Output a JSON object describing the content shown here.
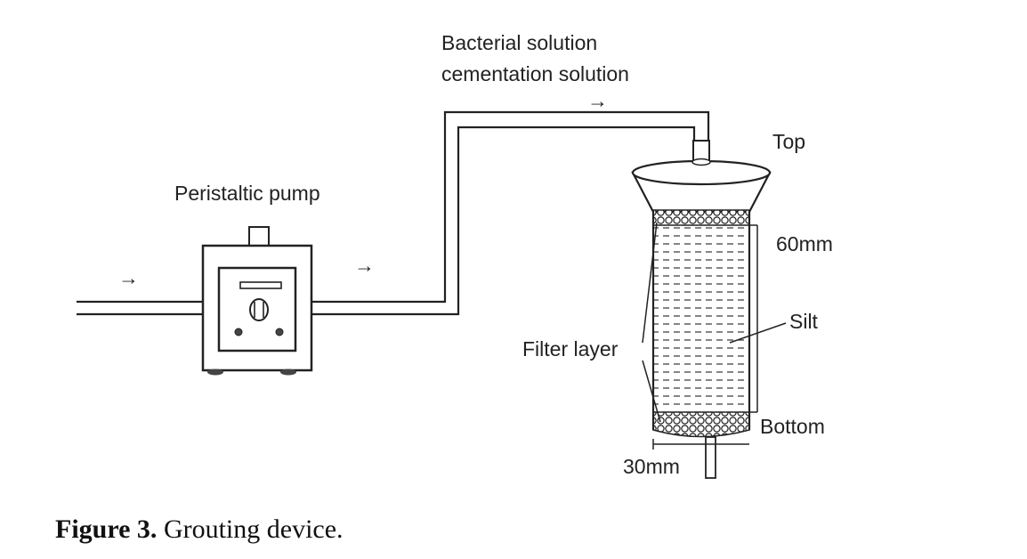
{
  "labels": {
    "solution_line1": "Bacterial solution",
    "solution_line2": "cementation solution",
    "pump": "Peristaltic pump",
    "top": "Top",
    "height": "60mm",
    "silt": "Silt",
    "filter": "Filter layer",
    "bottom": "Bottom",
    "width": "30mm",
    "arrow": "→"
  },
  "caption": {
    "label": "Figure 3.",
    "text": " Grouting device."
  }
}
